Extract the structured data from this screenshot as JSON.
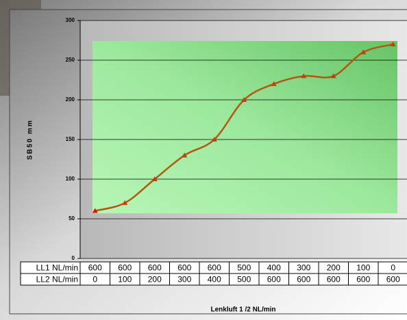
{
  "chart_data": {
    "type": "line",
    "y_label": "SB50 mm",
    "x_label": "Lenkluft 1 /2 NL/min",
    "values": [
      60,
      70,
      100,
      130,
      150,
      200,
      220,
      230,
      230,
      260,
      270
    ],
    "color": "#b5560f",
    "marker_color": "#c0400a",
    "ylim": [
      0,
      300
    ],
    "yticks": [
      0,
      50,
      100,
      150,
      200,
      250,
      300
    ],
    "grid": true,
    "table": {
      "rows": [
        {
          "name": "LL1 NL/min",
          "values": [
            600,
            600,
            600,
            600,
            600,
            500,
            400,
            300,
            200,
            100,
            0
          ]
        },
        {
          "name": "LL2 NL/min",
          "values": [
            0,
            100,
            200,
            300,
            400,
            500,
            600,
            600,
            600,
            600,
            600
          ]
        }
      ]
    }
  }
}
